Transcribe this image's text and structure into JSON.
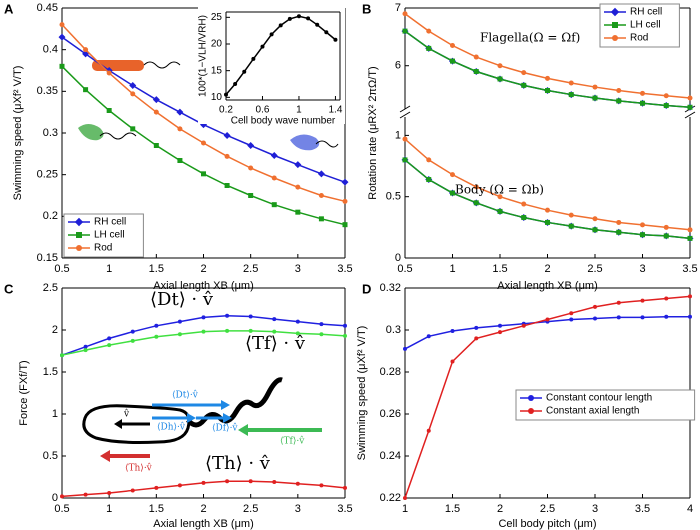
{
  "chart_data": [
    {
      "type": "line",
      "panel_label": "A",
      "xlabel": "Axial length XB (μm)",
      "ylabel": "Swimming speed (μXf² V/T)",
      "x": [
        0.5,
        0.75,
        1,
        1.25,
        1.5,
        1.75,
        2,
        2.25,
        2.5,
        2.75,
        3,
        3.25,
        3.5
      ],
      "xlim": [
        0.5,
        3.5
      ],
      "xticks": [
        0.5,
        1,
        1.5,
        2,
        2.5,
        3,
        3.5
      ],
      "ylim": [
        0.15,
        0.45
      ],
      "yticks": [
        0.15,
        0.2,
        0.25,
        0.3,
        0.35,
        0.4,
        0.45
      ],
      "legend": "lower-left",
      "series": [
        {
          "name": "RH cell",
          "color": "#1f1fd6",
          "marker": "diamond",
          "values": [
            0.415,
            0.395,
            0.375,
            0.357,
            0.34,
            0.325,
            0.31,
            0.297,
            0.285,
            0.273,
            0.262,
            0.251,
            0.241
          ]
        },
        {
          "name": "LH cell",
          "color": "#1a9a1a",
          "marker": "square",
          "values": [
            0.38,
            0.352,
            0.327,
            0.305,
            0.285,
            0.267,
            0.251,
            0.237,
            0.225,
            0.214,
            0.205,
            0.197,
            0.19
          ]
        },
        {
          "name": "Rod",
          "color": "#f07030",
          "marker": "circle",
          "values": [
            0.43,
            0.4,
            0.372,
            0.347,
            0.325,
            0.305,
            0.288,
            0.272,
            0.258,
            0.246,
            0.235,
            0.225,
            0.218
          ]
        }
      ]
    },
    {
      "type": "line",
      "xlabel": "Cell body wave number",
      "ylabel": "100*(1−VLH/VRH)",
      "x": [
        0.2,
        0.3,
        0.4,
        0.5,
        0.6,
        0.7,
        0.8,
        0.9,
        1.0,
        1.1,
        1.2,
        1.3,
        1.4
      ],
      "xlim": [
        0.2,
        1.45
      ],
      "xticks": [
        0.2,
        0.6,
        1,
        1.4
      ],
      "ylim": [
        9.5,
        26
      ],
      "yticks": [
        10,
        15,
        20,
        25
      ],
      "series": [
        {
          "color": "#000000",
          "marker": "circle",
          "values": [
            10.5,
            12.5,
            14.8,
            17.2,
            19.5,
            21.8,
            23.5,
            24.7,
            25.2,
            24.8,
            23.6,
            22.2,
            20.8
          ]
        }
      ]
    },
    {
      "type": "line",
      "panel_label": "B",
      "ylabel": "Rotation rate (μRX² 2πΩ/T)",
      "annotations": [
        "Flagella(Ω = Ωf)"
      ],
      "x": [
        0.5,
        0.75,
        1,
        1.25,
        1.5,
        1.75,
        2,
        2.25,
        2.5,
        2.75,
        3,
        3.25,
        3.5
      ],
      "xlim": [
        0.5,
        3.5
      ],
      "ylim": [
        5.25,
        7
      ],
      "yticks": [
        6,
        7
      ],
      "legend": "upper-right",
      "series": [
        {
          "name": "RH cell",
          "color": "#1f1fd6",
          "marker": "diamond",
          "values": [
            6.6,
            6.3,
            6.08,
            5.9,
            5.77,
            5.66,
            5.57,
            5.5,
            5.44,
            5.39,
            5.35,
            5.31,
            5.28
          ]
        },
        {
          "name": "LH cell",
          "color": "#1a9a1a",
          "marker": "square",
          "values": [
            6.6,
            6.3,
            6.08,
            5.9,
            5.77,
            5.66,
            5.57,
            5.5,
            5.44,
            5.39,
            5.35,
            5.31,
            5.28
          ]
        },
        {
          "name": "Rod",
          "color": "#f07030",
          "marker": "circle",
          "values": [
            6.9,
            6.6,
            6.35,
            6.15,
            6.0,
            5.88,
            5.78,
            5.7,
            5.63,
            5.57,
            5.52,
            5.48,
            5.44
          ]
        }
      ]
    },
    {
      "type": "line",
      "xlabel": "Axial length XB (μm)",
      "annotations": [
        "Body (Ω = Ωb)"
      ],
      "x": [
        0.5,
        0.75,
        1,
        1.25,
        1.5,
        1.75,
        2,
        2.25,
        2.5,
        2.75,
        3,
        3.25,
        3.5
      ],
      "xlim": [
        0.5,
        3.5
      ],
      "xticks": [
        0.5,
        1,
        1.5,
        2,
        2.5,
        3,
        3.5
      ],
      "ylim": [
        0,
        1.15
      ],
      "yticks": [
        0,
        0.5,
        1
      ],
      "series": [
        {
          "color": "#1f1fd6",
          "marker": "diamond",
          "values": [
            0.8,
            0.64,
            0.53,
            0.45,
            0.38,
            0.33,
            0.29,
            0.26,
            0.23,
            0.21,
            0.19,
            0.18,
            0.16
          ]
        },
        {
          "color": "#1a9a1a",
          "marker": "square",
          "values": [
            0.8,
            0.64,
            0.53,
            0.45,
            0.38,
            0.33,
            0.29,
            0.26,
            0.23,
            0.21,
            0.19,
            0.18,
            0.16
          ]
        },
        {
          "color": "#f07030",
          "marker": "circle",
          "values": [
            0.97,
            0.8,
            0.68,
            0.58,
            0.5,
            0.44,
            0.39,
            0.35,
            0.32,
            0.29,
            0.27,
            0.25,
            0.23
          ]
        }
      ]
    },
    {
      "type": "line",
      "panel_label": "C",
      "xlabel": "Axial length XB (μm)",
      "ylabel": "Force (FXf/T)",
      "annotations": [
        "⟨Dt⟩ · v̂",
        "⟨Tf⟩ · v̂",
        "⟨Th⟩ · v̂",
        "⟨Dt⟩·v̂",
        "⟨Dh⟩·v̂",
        "⟨Df⟩·v̂",
        "⟨Tf⟩·v̂",
        "⟨Th⟩·v̂",
        "v̂"
      ],
      "x": [
        0.5,
        0.75,
        1,
        1.25,
        1.5,
        1.75,
        2,
        2.25,
        2.5,
        2.75,
        3,
        3.25,
        3.5
      ],
      "xlim": [
        0.5,
        3.5
      ],
      "xticks": [
        0.5,
        1,
        1.5,
        2,
        2.5,
        3,
        3.5
      ],
      "ylim": [
        0,
        2.5
      ],
      "yticks": [
        0,
        0.5,
        1,
        1.5,
        2,
        2.5
      ],
      "series": [
        {
          "color": "#2020e0",
          "marker": "circle",
          "values": [
            1.7,
            1.8,
            1.9,
            1.98,
            2.05,
            2.1,
            2.15,
            2.17,
            2.16,
            2.13,
            2.1,
            2.07,
            2.05
          ]
        },
        {
          "color": "#40e040",
          "marker": "circle",
          "values": [
            1.7,
            1.76,
            1.82,
            1.87,
            1.92,
            1.95,
            1.98,
            1.99,
            1.99,
            1.98,
            1.96,
            1.95,
            1.93
          ]
        },
        {
          "color": "#e02020",
          "marker": "circle",
          "values": [
            0.02,
            0.04,
            0.06,
            0.09,
            0.12,
            0.15,
            0.18,
            0.2,
            0.2,
            0.19,
            0.17,
            0.15,
            0.12
          ]
        }
      ]
    },
    {
      "type": "line",
      "panel_label": "D",
      "xlabel": "Cell body pitch (μm)",
      "ylabel": "Swimming speed (μXf² V/T)",
      "x": [
        1,
        1.25,
        1.5,
        1.75,
        2,
        2.25,
        2.5,
        2.75,
        3,
        3.25,
        3.5,
        3.75,
        4
      ],
      "xlim": [
        1,
        4
      ],
      "xticks": [
        1,
        1.5,
        2,
        2.5,
        3,
        3.5,
        4
      ],
      "ylim": [
        0.22,
        0.32
      ],
      "yticks": [
        0.22,
        0.24,
        0.26,
        0.28,
        0.3,
        0.32
      ],
      "legend": "center-right",
      "series": [
        {
          "name": "Constant contour length",
          "color": "#2020e0",
          "marker": "circle",
          "values": [
            0.291,
            0.297,
            0.2995,
            0.301,
            0.302,
            0.303,
            0.304,
            0.305,
            0.3055,
            0.306,
            0.306,
            0.3063,
            0.3063
          ]
        },
        {
          "name": "Constant axial length",
          "color": "#e02020",
          "marker": "circle",
          "values": [
            0.22,
            0.252,
            0.285,
            0.296,
            0.299,
            0.302,
            0.305,
            0.308,
            0.311,
            0.313,
            0.314,
            0.315,
            0.316
          ]
        }
      ]
    }
  ]
}
